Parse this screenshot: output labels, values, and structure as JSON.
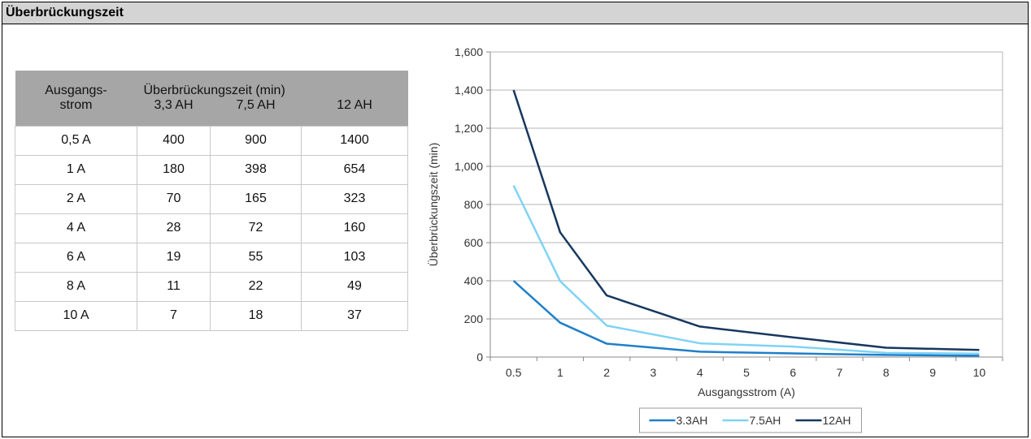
{
  "header": {
    "title": "Überbrückungszeit"
  },
  "table": {
    "col0_header_line1": "Ausgangs-",
    "col0_header_line2": "strom",
    "group_header": "Überbrückungszeit (min)",
    "sub_headers": [
      "3,3 AH",
      "7,5 AH",
      "12 AH"
    ],
    "rows": [
      [
        "0,5 A",
        "400",
        "900",
        "1400"
      ],
      [
        "1 A",
        "180",
        "398",
        "654"
      ],
      [
        "2 A",
        "70",
        "165",
        "323"
      ],
      [
        "4 A",
        "28",
        "72",
        "160"
      ],
      [
        "6 A",
        "19",
        "55",
        "103"
      ],
      [
        "8 A",
        "11",
        "22",
        "49"
      ],
      [
        "10 A",
        "7",
        "18",
        "37"
      ]
    ]
  },
  "chart_data": {
    "type": "line",
    "title": "",
    "xlabel": "Ausgangsstrom (A)",
    "ylabel": "Überbrückungszeit (min)",
    "x_categories": [
      "0.5",
      "1",
      "2",
      "3",
      "4",
      "5",
      "6",
      "7",
      "8",
      "9",
      "10"
    ],
    "ylim": [
      0,
      1600
    ],
    "yticks": [
      0,
      200,
      400,
      600,
      800,
      1000,
      1200,
      1400,
      1600
    ],
    "ytick_labels": [
      "0",
      "200",
      "400",
      "600",
      "800",
      "1,000",
      "1,200",
      "1,400",
      "1,600"
    ],
    "grid": true,
    "legend_position": "bottom",
    "series": [
      {
        "name": "3.3AH",
        "color": "#1f7fc9",
        "x": [
          0.5,
          1,
          2,
          4,
          6,
          8,
          10
        ],
        "values": [
          400,
          180,
          70,
          28,
          19,
          11,
          7
        ]
      },
      {
        "name": "7.5AH",
        "color": "#7fd3f5",
        "x": [
          0.5,
          1,
          2,
          4,
          6,
          8,
          10
        ],
        "values": [
          900,
          398,
          165,
          72,
          55,
          22,
          18
        ]
      },
      {
        "name": "12AH",
        "color": "#17375e",
        "x": [
          0.5,
          1,
          2,
          4,
          6,
          8,
          10
        ],
        "values": [
          1400,
          654,
          323,
          160,
          103,
          49,
          37
        ]
      }
    ]
  }
}
